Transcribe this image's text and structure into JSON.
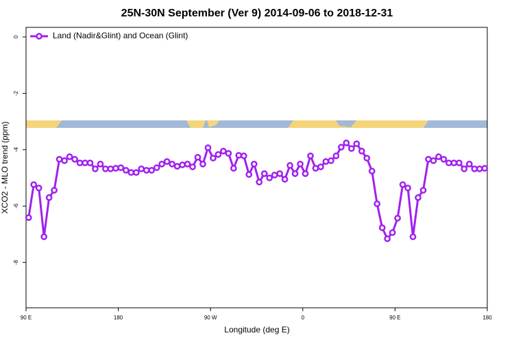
{
  "chart_data": {
    "type": "line",
    "title": "25N-30N September (Ver 9)   2014-09-06 to 2018-12-31",
    "x_label": "Longitude (deg E)",
    "y_label": "XCO2 - MLO trend (ppm)",
    "xlim": [
      90,
      540
    ],
    "ylim": [
      -9.61,
      0.34
    ],
    "xticks": [
      {
        "value": 90,
        "label": "90 E"
      },
      180,
      {
        "value": 270,
        "label": "90 W"
      },
      {
        "value": 360,
        "label": "0"
      },
      {
        "value": 450,
        "label": "90 E"
      },
      {
        "value": 540,
        "label": "180"
      }
    ],
    "yticks": [
      0,
      -2,
      -4,
      -6,
      -8
    ],
    "legend_position": "top-left",
    "series": [
      {
        "name": "Land (Nadir&Glint) and Ocean (Glint)",
        "color": "#a020f0",
        "x": [
          92.5,
          97.5,
          102.5,
          107.5,
          112.5,
          117.5,
          122.5,
          127.5,
          132.5,
          137.5,
          142.5,
          147.5,
          152.5,
          157.5,
          162.5,
          167.5,
          172.5,
          177.5,
          182.5,
          187.5,
          192.5,
          197.5,
          202.5,
          207.5,
          212.5,
          217.5,
          222.5,
          227.5,
          232.5,
          237.5,
          242.5,
          247.5,
          252.5,
          257.5,
          262.5,
          267.5,
          272.5,
          277.5,
          282.5,
          287.5,
          292.5,
          297.5,
          302.5,
          307.5,
          312.5,
          317.5,
          322.5,
          327.5,
          332.5,
          337.5,
          342.5,
          347.5,
          352.5,
          357.5,
          362.5,
          367.5,
          372.5,
          377.5,
          382.5,
          387.5,
          392.5,
          397.5,
          402.5,
          407.5,
          412.5,
          417.5,
          422.5,
          427.5,
          432.5,
          437.5,
          442.5,
          447.5,
          452.5,
          457.5,
          462.5,
          467.5,
          472.5,
          477.5,
          482.5,
          487.5,
          492.5,
          497.5,
          502.5,
          507.5,
          512.5,
          517.5,
          522.5,
          527.5,
          532.5,
          537.5
        ],
        "values": [
          -6.41,
          -5.24,
          -5.36,
          -7.09,
          -5.7,
          -5.44,
          -4.34,
          -4.39,
          -4.25,
          -4.34,
          -4.47,
          -4.47,
          -4.47,
          -4.68,
          -4.51,
          -4.68,
          -4.68,
          -4.66,
          -4.64,
          -4.73,
          -4.81,
          -4.81,
          -4.68,
          -4.73,
          -4.73,
          -4.64,
          -4.51,
          -4.42,
          -4.51,
          -4.59,
          -4.54,
          -4.51,
          -4.61,
          -4.27,
          -4.51,
          -3.93,
          -4.3,
          -4.17,
          -4.05,
          -4.13,
          -4.66,
          -4.2,
          -4.22,
          -4.88,
          -4.51,
          -5.15,
          -4.85,
          -5.0,
          -4.9,
          -4.85,
          -5.05,
          -4.56,
          -4.85,
          -4.51,
          -4.85,
          -4.22,
          -4.66,
          -4.61,
          -4.42,
          -4.39,
          -4.22,
          -3.91,
          -3.76,
          -3.96,
          -3.79,
          -4.05,
          -4.3,
          -4.76,
          -5.92,
          -6.77,
          -7.16,
          -6.94,
          -6.43,
          -5.24,
          -5.36,
          -7.09,
          -5.7,
          -5.44,
          -4.34,
          -4.39,
          -4.25,
          -4.34,
          -4.47,
          -4.47,
          -4.47,
          -4.68,
          -4.51,
          -4.68,
          -4.68,
          -4.66
        ]
      }
    ]
  }
}
